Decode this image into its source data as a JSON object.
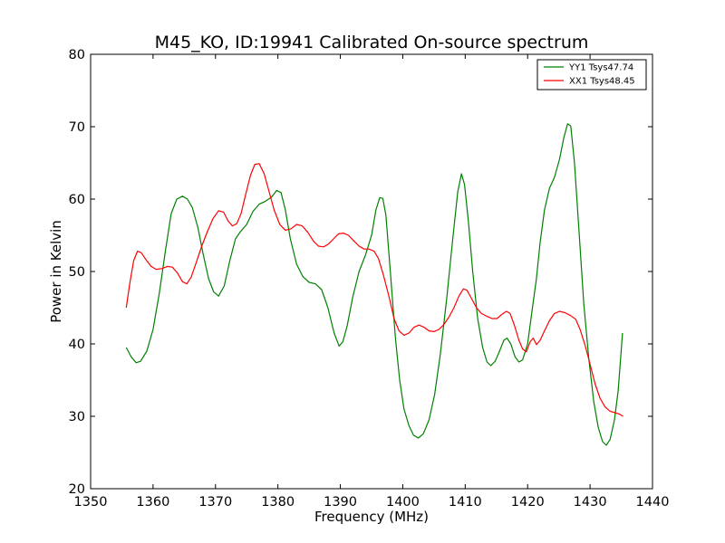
{
  "chart_data": {
    "type": "line",
    "title": "M45_KO, ID:19941 Calibrated On-source spectrum",
    "xlabel": "Frequency (MHz)",
    "ylabel": "Power in Kelvin",
    "xlim": [
      1350,
      1440
    ],
    "ylim": [
      20,
      80
    ],
    "xticks": [
      1350,
      1360,
      1370,
      1380,
      1390,
      1400,
      1410,
      1420,
      1430,
      1440
    ],
    "yticks": [
      20,
      30,
      40,
      50,
      60,
      70,
      80
    ],
    "grid": false,
    "legend_position": "top-right",
    "series": [
      {
        "name": "YY1 Tsys47.74",
        "color": "#008000",
        "points": [
          [
            1355.7,
            39.5
          ],
          [
            1356.5,
            38.2
          ],
          [
            1357.3,
            37.4
          ],
          [
            1358.0,
            37.6
          ],
          [
            1359.0,
            39.0
          ],
          [
            1360.0,
            42.0
          ],
          [
            1361.0,
            47.0
          ],
          [
            1362.0,
            53.0
          ],
          [
            1362.9,
            58.0
          ],
          [
            1363.8,
            60.0
          ],
          [
            1364.7,
            60.4
          ],
          [
            1365.5,
            60.0
          ],
          [
            1366.3,
            58.8
          ],
          [
            1367.2,
            56.0
          ],
          [
            1368.0,
            52.5
          ],
          [
            1368.9,
            49.0
          ],
          [
            1369.7,
            47.2
          ],
          [
            1370.5,
            46.6
          ],
          [
            1371.4,
            48.0
          ],
          [
            1372.3,
            51.5
          ],
          [
            1373.2,
            54.5
          ],
          [
            1374.0,
            55.5
          ],
          [
            1375.0,
            56.5
          ],
          [
            1376.0,
            58.3
          ],
          [
            1377.0,
            59.3
          ],
          [
            1378.0,
            59.7
          ],
          [
            1379.0,
            60.3
          ],
          [
            1379.8,
            61.2
          ],
          [
            1380.5,
            60.9
          ],
          [
            1381.2,
            58.5
          ],
          [
            1382.0,
            54.5
          ],
          [
            1383.0,
            51.0
          ],
          [
            1384.0,
            49.3
          ],
          [
            1385.0,
            48.5
          ],
          [
            1386.0,
            48.3
          ],
          [
            1387.0,
            47.5
          ],
          [
            1388.0,
            45.0
          ],
          [
            1389.0,
            41.5
          ],
          [
            1389.8,
            39.7
          ],
          [
            1390.4,
            40.3
          ],
          [
            1391.1,
            42.5
          ],
          [
            1392.0,
            46.5
          ],
          [
            1393.0,
            50.0
          ],
          [
            1394.0,
            52.2
          ],
          [
            1395.0,
            55.0
          ],
          [
            1395.7,
            58.5
          ],
          [
            1396.3,
            60.2
          ],
          [
            1396.8,
            60.1
          ],
          [
            1397.3,
            57.8
          ],
          [
            1398.0,
            50.0
          ],
          [
            1398.8,
            41.0
          ],
          [
            1399.5,
            35.0
          ],
          [
            1400.2,
            31.0
          ],
          [
            1401.0,
            28.7
          ],
          [
            1401.7,
            27.4
          ],
          [
            1402.5,
            27.0
          ],
          [
            1403.3,
            27.6
          ],
          [
            1404.2,
            29.5
          ],
          [
            1405.1,
            33.0
          ],
          [
            1406.0,
            38.5
          ],
          [
            1407.0,
            46.0
          ],
          [
            1408.0,
            54.5
          ],
          [
            1408.8,
            61.0
          ],
          [
            1409.4,
            63.5
          ],
          [
            1409.9,
            62.0
          ],
          [
            1410.5,
            57.0
          ],
          [
            1411.2,
            50.0
          ],
          [
            1412.0,
            43.5
          ],
          [
            1412.8,
            39.5
          ],
          [
            1413.5,
            37.5
          ],
          [
            1414.1,
            37.0
          ],
          [
            1414.8,
            37.6
          ],
          [
            1415.5,
            39.0
          ],
          [
            1416.2,
            40.5
          ],
          [
            1416.7,
            40.8
          ],
          [
            1417.3,
            40.0
          ],
          [
            1418.0,
            38.2
          ],
          [
            1418.6,
            37.5
          ],
          [
            1419.2,
            37.8
          ],
          [
            1420.0,
            40.0
          ],
          [
            1420.7,
            44.5
          ],
          [
            1421.4,
            49.0
          ],
          [
            1422.0,
            54.0
          ],
          [
            1422.7,
            58.5
          ],
          [
            1423.5,
            61.5
          ],
          [
            1424.3,
            63.0
          ],
          [
            1425.1,
            65.5
          ],
          [
            1425.8,
            68.5
          ],
          [
            1426.4,
            70.4
          ],
          [
            1426.9,
            70.1
          ],
          [
            1427.5,
            65.0
          ],
          [
            1428.2,
            56.0
          ],
          [
            1429.0,
            45.5
          ],
          [
            1429.8,
            38.0
          ],
          [
            1430.6,
            32.0
          ],
          [
            1431.3,
            28.5
          ],
          [
            1432.0,
            26.5
          ],
          [
            1432.6,
            26.0
          ],
          [
            1433.2,
            26.8
          ],
          [
            1433.9,
            29.5
          ],
          [
            1434.5,
            33.5
          ],
          [
            1435.2,
            41.5
          ]
        ]
      },
      {
        "name": "XX1 Tsys48.45",
        "color": "#ff0000",
        "points": [
          [
            1355.7,
            45.0
          ],
          [
            1356.3,
            48.5
          ],
          [
            1356.9,
            51.5
          ],
          [
            1357.5,
            52.8
          ],
          [
            1358.1,
            52.6
          ],
          [
            1358.9,
            51.6
          ],
          [
            1359.7,
            50.7
          ],
          [
            1360.5,
            50.3
          ],
          [
            1361.4,
            50.4
          ],
          [
            1362.3,
            50.7
          ],
          [
            1363.1,
            50.6
          ],
          [
            1363.9,
            49.8
          ],
          [
            1364.7,
            48.6
          ],
          [
            1365.4,
            48.3
          ],
          [
            1366.1,
            49.2
          ],
          [
            1366.9,
            51.2
          ],
          [
            1367.8,
            53.5
          ],
          [
            1368.7,
            55.5
          ],
          [
            1369.6,
            57.3
          ],
          [
            1370.5,
            58.4
          ],
          [
            1371.3,
            58.2
          ],
          [
            1372.0,
            57.0
          ],
          [
            1372.7,
            56.3
          ],
          [
            1373.4,
            56.6
          ],
          [
            1374.1,
            58.0
          ],
          [
            1374.8,
            60.5
          ],
          [
            1375.6,
            63.3
          ],
          [
            1376.3,
            64.8
          ],
          [
            1377.0,
            64.9
          ],
          [
            1377.8,
            63.5
          ],
          [
            1378.6,
            61.0
          ],
          [
            1379.4,
            58.5
          ],
          [
            1380.3,
            56.5
          ],
          [
            1381.2,
            55.7
          ],
          [
            1382.1,
            55.9
          ],
          [
            1383.0,
            56.5
          ],
          [
            1383.9,
            56.3
          ],
          [
            1384.8,
            55.4
          ],
          [
            1385.7,
            54.2
          ],
          [
            1386.5,
            53.5
          ],
          [
            1387.3,
            53.4
          ],
          [
            1388.1,
            53.8
          ],
          [
            1388.9,
            54.5
          ],
          [
            1389.7,
            55.2
          ],
          [
            1390.5,
            55.3
          ],
          [
            1391.3,
            55.0
          ],
          [
            1392.2,
            54.2
          ],
          [
            1393.0,
            53.5
          ],
          [
            1393.8,
            53.1
          ],
          [
            1394.6,
            53.1
          ],
          [
            1395.4,
            52.8
          ],
          [
            1396.1,
            51.8
          ],
          [
            1396.9,
            49.5
          ],
          [
            1397.8,
            46.5
          ],
          [
            1398.6,
            43.5
          ],
          [
            1399.4,
            41.8
          ],
          [
            1400.2,
            41.2
          ],
          [
            1401.0,
            41.5
          ],
          [
            1401.8,
            42.3
          ],
          [
            1402.6,
            42.6
          ],
          [
            1403.4,
            42.3
          ],
          [
            1404.2,
            41.8
          ],
          [
            1405.0,
            41.7
          ],
          [
            1405.8,
            42.0
          ],
          [
            1406.6,
            42.7
          ],
          [
            1407.4,
            43.7
          ],
          [
            1408.2,
            45.0
          ],
          [
            1409.0,
            46.6
          ],
          [
            1409.7,
            47.6
          ],
          [
            1410.3,
            47.4
          ],
          [
            1411.0,
            46.3
          ],
          [
            1411.8,
            45.0
          ],
          [
            1412.6,
            44.2
          ],
          [
            1413.5,
            43.8
          ],
          [
            1414.3,
            43.5
          ],
          [
            1415.1,
            43.5
          ],
          [
            1415.9,
            44.1
          ],
          [
            1416.6,
            44.5
          ],
          [
            1417.2,
            44.2
          ],
          [
            1417.9,
            42.5
          ],
          [
            1418.6,
            40.5
          ],
          [
            1419.2,
            39.3
          ],
          [
            1419.8,
            38.9
          ],
          [
            1420.4,
            40.3
          ],
          [
            1420.9,
            40.8
          ],
          [
            1421.4,
            39.9
          ],
          [
            1422.0,
            40.5
          ],
          [
            1422.7,
            41.8
          ],
          [
            1423.5,
            43.2
          ],
          [
            1424.3,
            44.2
          ],
          [
            1425.1,
            44.5
          ],
          [
            1426.0,
            44.3
          ],
          [
            1426.9,
            43.9
          ],
          [
            1427.7,
            43.4
          ],
          [
            1428.4,
            42.0
          ],
          [
            1429.2,
            39.8
          ],
          [
            1430.0,
            37.2
          ],
          [
            1430.8,
            34.5
          ],
          [
            1431.6,
            32.5
          ],
          [
            1432.4,
            31.3
          ],
          [
            1433.2,
            30.7
          ],
          [
            1434.0,
            30.5
          ],
          [
            1434.7,
            30.3
          ],
          [
            1435.3,
            30.0
          ]
        ]
      }
    ]
  }
}
